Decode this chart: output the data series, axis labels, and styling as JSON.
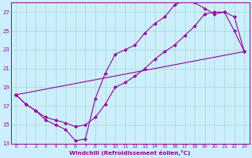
{
  "xlabel": "Windchill (Refroidissement éolien,°C)",
  "bg_color": "#cceeff",
  "line_color": "#990099",
  "grid_color": "#aaddcc",
  "xlim": [
    -0.5,
    23.5
  ],
  "ylim": [
    13,
    28
  ],
  "xticks": [
    0,
    1,
    2,
    3,
    4,
    5,
    6,
    7,
    8,
    9,
    10,
    11,
    12,
    13,
    14,
    15,
    16,
    17,
    18,
    19,
    20,
    21,
    22,
    23
  ],
  "yticks": [
    13,
    15,
    17,
    19,
    21,
    23,
    25,
    27
  ],
  "line1_x": [
    0,
    1,
    2,
    3,
    4,
    5,
    6,
    7,
    8,
    9,
    10,
    11,
    12,
    13,
    14,
    15,
    16,
    17,
    18,
    19,
    20,
    21,
    22,
    23
  ],
  "line1_y": [
    18.2,
    17.2,
    16.5,
    15.5,
    15.0,
    14.5,
    13.3,
    13.5,
    17.8,
    20.5,
    22.5,
    23.0,
    23.5,
    24.8,
    25.8,
    26.5,
    27.8,
    28.2,
    28.0,
    27.4,
    26.8,
    27.0,
    25.0,
    22.8
  ],
  "line2_x": [
    0,
    1,
    2,
    3,
    4,
    5,
    6,
    7,
    8,
    9,
    10,
    11,
    12,
    13,
    14,
    15,
    16,
    17,
    18,
    19,
    20,
    21,
    22,
    23
  ],
  "line2_y": [
    18.2,
    17.2,
    16.5,
    15.8,
    15.5,
    15.2,
    14.8,
    15.0,
    15.8,
    17.2,
    19.0,
    19.5,
    20.2,
    21.0,
    22.0,
    22.8,
    23.5,
    24.5,
    25.5,
    26.8,
    27.0,
    27.0,
    26.5,
    22.8
  ],
  "line3_x": [
    0,
    23
  ],
  "line3_y": [
    18.2,
    22.8
  ]
}
